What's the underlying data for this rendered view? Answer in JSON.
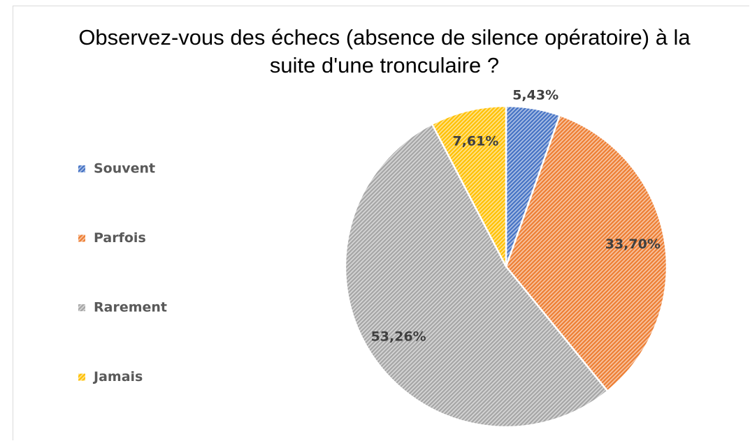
{
  "chart_data": {
    "type": "pie",
    "title": "Observez-vous des échecs (absence de silence opératoire) à la suite d'une tronculaire ?",
    "categories": [
      "Souvent",
      "Parfois",
      "Rarement",
      "Jamais"
    ],
    "values": [
      5.43,
      33.7,
      53.26,
      7.61
    ],
    "value_labels": [
      "5,43%",
      "33,70%",
      "53,26%",
      "7,61%"
    ],
    "colors": [
      "#4472c4",
      "#ed7d31",
      "#a5a5a5",
      "#ffc000"
    ],
    "legend": "left"
  }
}
